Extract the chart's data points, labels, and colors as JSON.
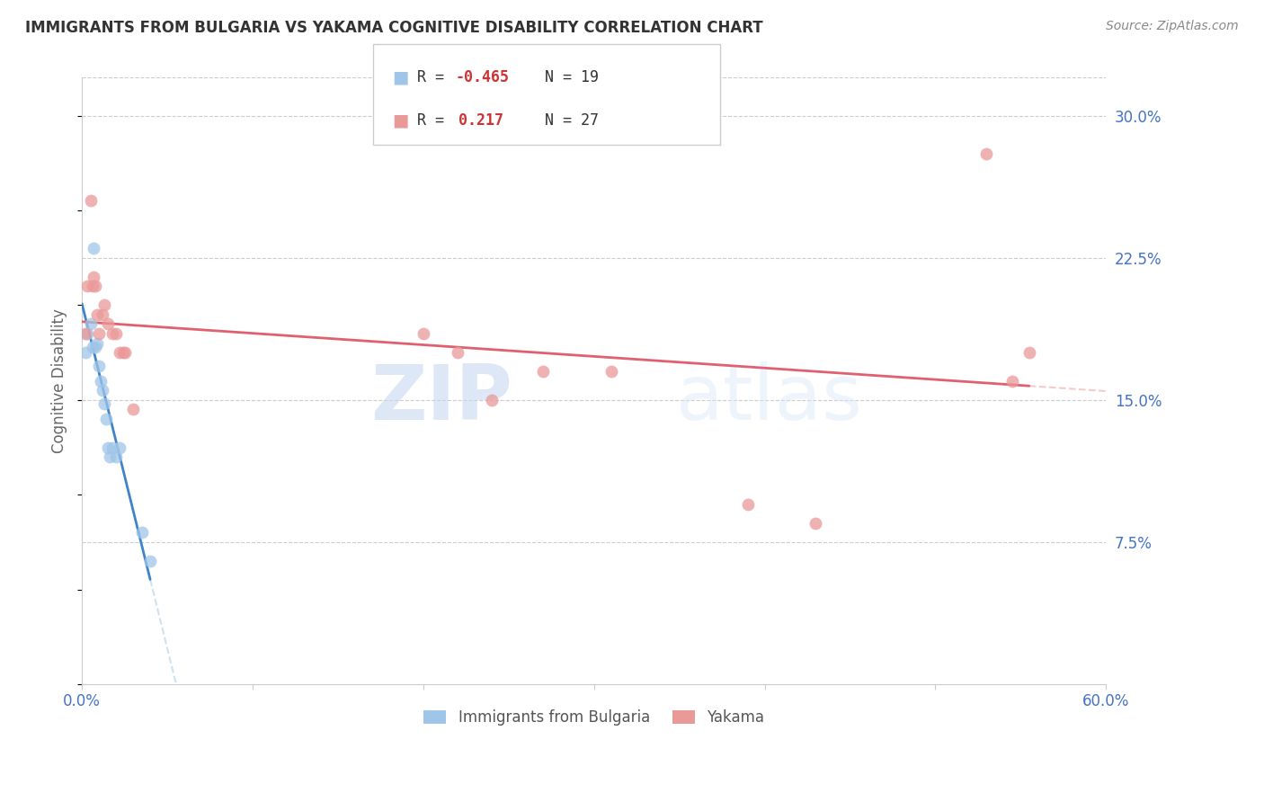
{
  "title": "IMMIGRANTS FROM BULGARIA VS YAKAMA COGNITIVE DISABILITY CORRELATION CHART",
  "source": "Source: ZipAtlas.com",
  "ylabel": "Cognitive Disability",
  "y_ticks_right": [
    0.075,
    0.15,
    0.225,
    0.3
  ],
  "y_tick_labels_right": [
    "7.5%",
    "15.0%",
    "22.5%",
    "30.0%"
  ],
  "xlim": [
    0.0,
    0.6
  ],
  "ylim": [
    0.0,
    0.32
  ],
  "legend_blue_r": "-0.465",
  "legend_blue_n": "19",
  "legend_pink_r": "0.217",
  "legend_pink_n": "27",
  "legend_label_blue": "Immigrants from Bulgaria",
  "legend_label_pink": "Yakama",
  "blue_scatter_x": [
    0.002,
    0.003,
    0.005,
    0.006,
    0.007,
    0.008,
    0.009,
    0.01,
    0.011,
    0.012,
    0.013,
    0.014,
    0.015,
    0.016,
    0.018,
    0.02,
    0.022,
    0.035,
    0.04
  ],
  "blue_scatter_y": [
    0.175,
    0.185,
    0.19,
    0.178,
    0.23,
    0.178,
    0.18,
    0.168,
    0.16,
    0.155,
    0.148,
    0.14,
    0.125,
    0.12,
    0.125,
    0.12,
    0.125,
    0.08,
    0.065
  ],
  "pink_scatter_x": [
    0.002,
    0.003,
    0.005,
    0.006,
    0.007,
    0.008,
    0.009,
    0.01,
    0.012,
    0.013,
    0.015,
    0.018,
    0.02,
    0.022,
    0.024,
    0.025,
    0.03,
    0.2,
    0.22,
    0.24,
    0.27,
    0.31,
    0.39,
    0.43,
    0.53,
    0.545,
    0.555
  ],
  "pink_scatter_y": [
    0.185,
    0.21,
    0.255,
    0.21,
    0.215,
    0.21,
    0.195,
    0.185,
    0.195,
    0.2,
    0.19,
    0.185,
    0.185,
    0.175,
    0.175,
    0.175,
    0.145,
    0.185,
    0.175,
    0.15,
    0.165,
    0.165,
    0.095,
    0.085,
    0.28,
    0.16,
    0.175
  ],
  "blue_color": "#9fc5e8",
  "pink_color": "#ea9999",
  "blue_line_color": "#3d85c8",
  "pink_line_color": "#e06070",
  "watermark_zip": "ZIP",
  "watermark_atlas": "atlas",
  "background_color": "#ffffff",
  "grid_color": "#cccccc",
  "tick_color": "#4472c4",
  "title_color": "#333333",
  "source_color": "#888888",
  "ylabel_color": "#666666"
}
